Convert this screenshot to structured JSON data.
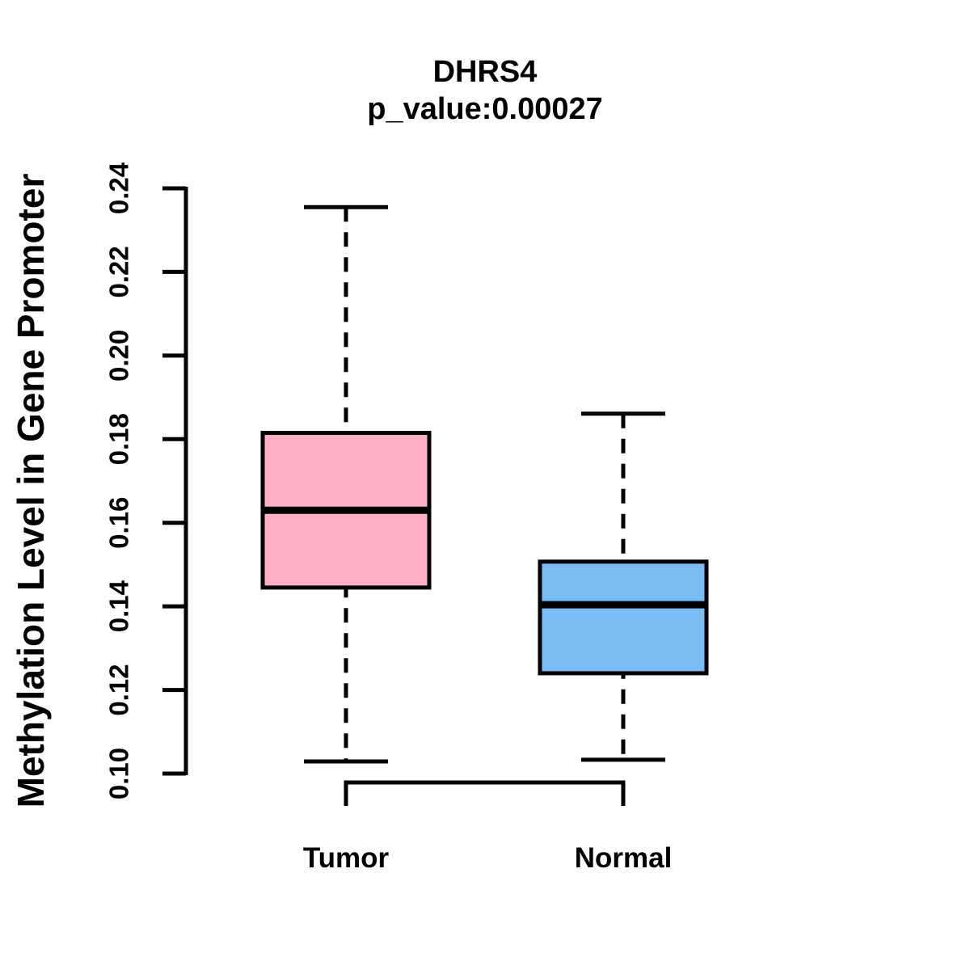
{
  "chart_data": {
    "type": "boxplot",
    "title": "DHRS4",
    "subtitle": "p_value:0.00027",
    "ylabel": "Methylation Level in Gene Promoter",
    "xlabel": "",
    "categories": [
      "Tumor",
      "Normal"
    ],
    "series": [
      {
        "name": "Tumor",
        "color": "#FFB0C5",
        "whisker_low": 0.1029,
        "q1": 0.1445,
        "median": 0.163,
        "q3": 0.1815,
        "whisker_high": 0.2355
      },
      {
        "name": "Normal",
        "color": "#7ABDF5",
        "whisker_low": 0.1033,
        "q1": 0.124,
        "median": 0.1404,
        "q3": 0.1507,
        "whisker_high": 0.1861
      }
    ],
    "ylim": [
      0.1,
      0.24
    ],
    "yticks": [
      0.1,
      0.12,
      0.14,
      0.16,
      0.18,
      0.2,
      0.22,
      0.24
    ],
    "ytick_decimals": 2,
    "ytick_rotation_deg": 90,
    "grid": false,
    "legend": "none",
    "axis_color": "#000000",
    "text_color": "#000000"
  }
}
